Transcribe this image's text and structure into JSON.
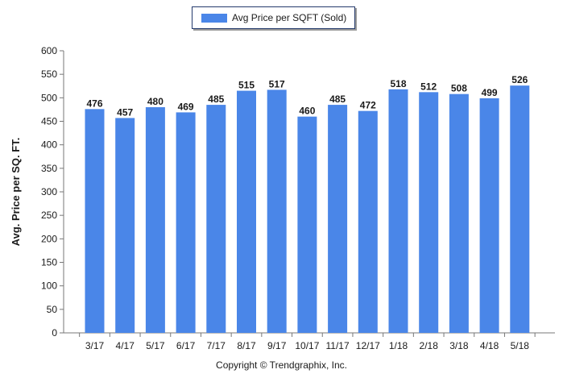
{
  "chart_data": {
    "type": "bar",
    "categories": [
      "3/17",
      "4/17",
      "5/17",
      "6/17",
      "7/17",
      "8/17",
      "9/17",
      "10/17",
      "11/17",
      "12/17",
      "1/18",
      "2/18",
      "3/18",
      "4/18",
      "5/18"
    ],
    "series": [
      {
        "name": "Avg Price per SQFT (Sold)",
        "values": [
          476,
          457,
          480,
          469,
          485,
          515,
          517,
          460,
          485,
          472,
          518,
          512,
          508,
          499,
          526
        ]
      }
    ],
    "data_labels": [
      "476",
      "457",
      "480",
      "469",
      "485",
      "515",
      "517",
      "460",
      "485",
      "472",
      "518",
      "512",
      "508",
      "499",
      "526"
    ],
    "ylabel": "Avg. Price per SQ. FT.",
    "xlabel": "",
    "ylim": [
      0,
      600
    ],
    "yticks": [
      0,
      50,
      100,
      150,
      200,
      250,
      300,
      350,
      400,
      450,
      500,
      550,
      600
    ],
    "grid": false,
    "legend_position": "top-center"
  },
  "colors": {
    "bar": "#4a86e8",
    "axis": "#777777"
  },
  "footer": {
    "copyright": "Copyright © Trendgraphix, Inc."
  }
}
